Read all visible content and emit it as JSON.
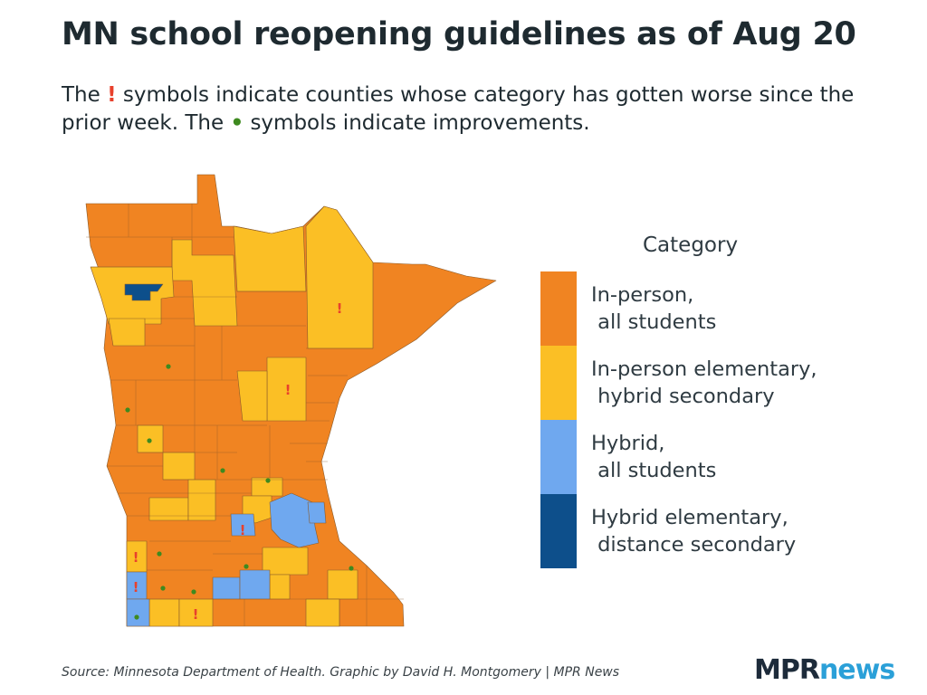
{
  "header": {
    "title": "MN school reopening guidelines as of Aug 20",
    "subtitle_part1": "The ",
    "worse_symbol": "!",
    "subtitle_part2": " symbols indicate counties whose category has gotten worse since the prior week. The ",
    "better_symbol": "•",
    "subtitle_part3": " symbols indicate improvements."
  },
  "legend": {
    "title": "Category",
    "items": [
      {
        "label": "In-person,\n all students",
        "color": "#f08422"
      },
      {
        "label": "In-person elementary,\n hybrid secondary",
        "color": "#fbbf25"
      },
      {
        "label": "Hybrid,\n all students",
        "color": "#6fa8ef"
      },
      {
        "label": "Hybrid elementary,\n distance secondary",
        "color": "#0d4f8b"
      }
    ]
  },
  "colors": {
    "in_person": "#f08422",
    "in_person_elem": "#fbbf25",
    "hybrid": "#6fa8ef",
    "hybrid_distance": "#0d4f8b",
    "border": "#8a5a2a",
    "worse_marker": "#e8412c",
    "better_marker": "#3e8a1f"
  },
  "footer": {
    "source": "Source: Minnesota Department of Health. Graphic by David H. Montgomery | MPR News",
    "logo_mpr": "MPR",
    "logo_news": "news"
  }
}
